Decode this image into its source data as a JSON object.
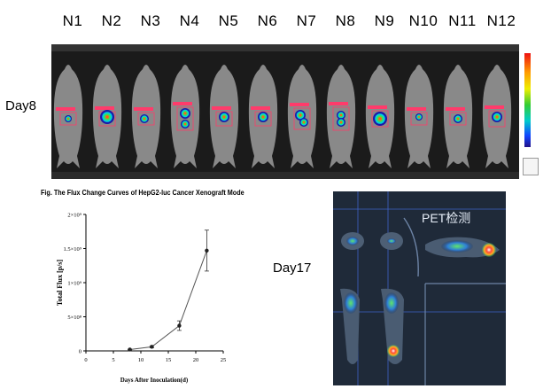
{
  "sample_labels": [
    "N1",
    "N2",
    "N3",
    "N4",
    "N5",
    "N6",
    "N7",
    "N8",
    "N9",
    "N10",
    "N11",
    "N12"
  ],
  "day8_label": "Day8",
  "day17_label": "Day17",
  "pet_label": "PET检测",
  "colors": {
    "background": "#ffffff",
    "strip_bg": "#1b1b1b",
    "roi": "#ff3b6b",
    "pet_bg": "#1f2a39"
  },
  "chart_data": {
    "type": "line",
    "title": "Fig. The Flux Change Curves of HepG2-luc Cancer Xenograft Mode",
    "xlabel": "Days After Inoculation(d)",
    "ylabel": "Total Flux [p/s]",
    "x": [
      8,
      12,
      17,
      22
    ],
    "y": [
      20000000,
      60000000,
      370000000,
      1470000000
    ],
    "error": [
      5000000,
      15000000,
      70000000,
      300000000
    ],
    "xlim": [
      0,
      25
    ],
    "ylim": [
      0,
      2000000000
    ],
    "xticks": [
      0,
      5,
      10,
      15,
      20,
      25
    ],
    "yticks": [
      0,
      500000000,
      1000000000,
      1500000000,
      2000000000
    ],
    "ytick_labels": [
      "0",
      "5×10⁸",
      "1×10⁹",
      "1.5×10⁹",
      "2×10⁹"
    ]
  }
}
